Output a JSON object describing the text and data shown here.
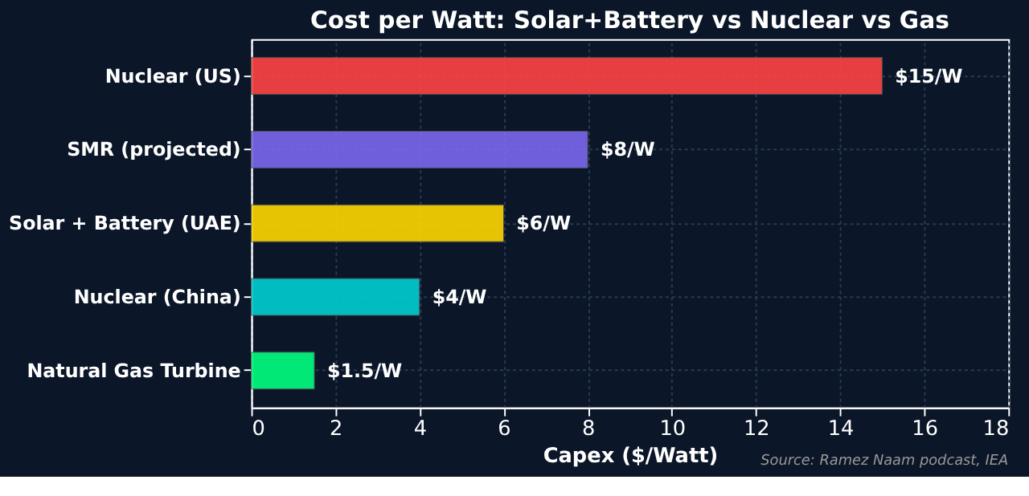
{
  "chart_data": {
    "type": "bar",
    "orientation": "horizontal",
    "title": "Cost per Watt: Solar+Battery vs Nuclear vs Gas",
    "xlabel": "Capex ($/Watt)",
    "categories": [
      "Nuclear (US)",
      "SMR (projected)",
      "Solar + Battery (UAE)",
      "Nuclear (China)",
      "Natural Gas Turbine"
    ],
    "values": [
      15,
      8,
      6,
      4,
      1.5
    ],
    "colors": [
      "#ff4444",
      "#7b68ee",
      "#ffd700",
      "#00ced1",
      "#00ff7f"
    ],
    "value_labels": [
      "$15/W",
      "$8/W",
      "$6/W",
      "$4/W",
      "$1.5/W"
    ],
    "xlim": [
      0,
      18
    ],
    "xticks": [
      0,
      2,
      4,
      6,
      8,
      10,
      12,
      14,
      16,
      18
    ],
    "grid": true,
    "annotations": [
      "Source: Ramez Naam podcast, IEA"
    ]
  }
}
